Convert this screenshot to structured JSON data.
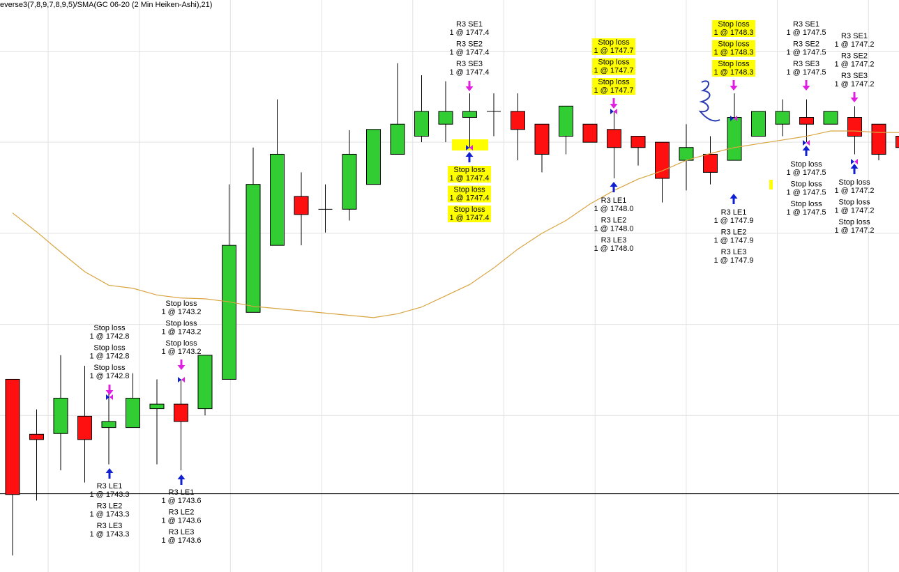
{
  "chart_data": {
    "type": "candlestick",
    "title": "everse3(7,8,9,7,8,9,5)/SMA(GC 06-20 (2 Min Heiken-Ashi),21)",
    "ylim": [
      1741.4,
      1749.0
    ],
    "gridlines": [
      1743.48,
      1744.69,
      1745.9,
      1747.11,
      1748.32
    ],
    "level": 1742.44,
    "up_color": "#32cd32",
    "down_color": "#ff1010",
    "open": [
      1743.96,
      1743.23,
      1743.24,
      1743.47,
      1743.32,
      1743.32,
      1743.57,
      1743.63,
      1743.57,
      1743.96,
      1744.85,
      1745.74,
      1746.39,
      1746.22,
      1746.22,
      1746.55,
      1746.95,
      1747.19,
      1747.35,
      1747.44,
      1747.52,
      1747.52,
      1747.35,
      1747.19,
      1747.35,
      1747.28,
      1747.19,
      1747.11,
      1746.87,
      1746.95,
      1746.87,
      1747.19,
      1747.35,
      1747.44,
      1747.35,
      1747.44,
      1747.35,
      1747.19
    ],
    "high": [
      1743.96,
      1743.56,
      1744.28,
      1744.14,
      1743.77,
      1744.04,
      1743.96,
      1743.96,
      1744.28,
      1746.55,
      1747.04,
      1747.68,
      1746.71,
      1746.55,
      1747.27,
      1747.28,
      1748.16,
      1748.0,
      1747.92,
      1747.76,
      1747.76,
      1747.76,
      1747.35,
      1747.59,
      1747.35,
      1747.52,
      1747.19,
      1747.11,
      1747.35,
      1747.19,
      1747.76,
      1747.52,
      1747.68,
      1747.68,
      1747.52,
      1747.59,
      1747.35,
      1747.19
    ],
    "low": [
      1741.62,
      1742.35,
      1742.75,
      1742.59,
      1742.83,
      1743.32,
      1742.83,
      1742.75,
      1743.48,
      1743.96,
      1744.85,
      1745.74,
      1745.74,
      1745.91,
      1746.07,
      1746.55,
      1746.95,
      1747.11,
      1747.11,
      1747.04,
      1747.19,
      1746.87,
      1746.71,
      1746.95,
      1747.11,
      1746.63,
      1746.8,
      1746.31,
      1746.47,
      1746.55,
      1746.87,
      1747.19,
      1747.19,
      1747.11,
      1747.35,
      1746.95,
      1746.87,
      1747.04
    ],
    "close": [
      1742.43,
      1743.16,
      1743.71,
      1743.16,
      1743.4,
      1743.71,
      1743.63,
      1743.4,
      1744.28,
      1745.74,
      1746.55,
      1746.95,
      1746.15,
      1746.22,
      1746.95,
      1747.28,
      1747.35,
      1747.52,
      1747.52,
      1747.52,
      1747.52,
      1747.28,
      1746.95,
      1747.59,
      1747.11,
      1747.04,
      1747.04,
      1746.63,
      1747.04,
      1746.71,
      1747.44,
      1747.52,
      1747.52,
      1747.35,
      1747.52,
      1747.19,
      1746.95,
      1747.04
    ],
    "sma": {
      "color": "#d9a441",
      "values": [
        1746.17,
        1745.92,
        1745.65,
        1745.39,
        1745.21,
        1745.17,
        1745.08,
        1745.04,
        1745.03,
        1744.99,
        1744.93,
        1744.9,
        1744.87,
        1744.84,
        1744.81,
        1744.78,
        1744.83,
        1744.92,
        1745.07,
        1745.22,
        1745.44,
        1745.69,
        1745.9,
        1746.07,
        1746.29,
        1746.47,
        1746.62,
        1746.73,
        1746.87,
        1746.96,
        1747.04,
        1747.09,
        1747.14,
        1747.19,
        1747.26,
        1747.26,
        1747.24,
        1747.24
      ]
    },
    "annotations": [
      {
        "lines": [
          "Stop loss",
          "1 @ 1742.8",
          "Stop loss",
          "1 @ 1742.8",
          "Stop loss",
          "1 @ 1742.8"
        ]
      },
      {
        "lines": [
          "R3 LE1",
          "1 @ 1743.3",
          "R3 LE2",
          "1 @ 1743.3",
          "R3 LE3",
          "1 @ 1743.3"
        ]
      },
      {
        "lines": [
          "Stop loss",
          "1 @ 1743.2",
          "Stop loss",
          "1 @ 1743.2",
          "Stop loss",
          "1 @ 1743.2"
        ]
      },
      {
        "lines": [
          "R3 LE1",
          "1 @ 1743.6",
          "R3 LE2",
          "1 @ 1743.6",
          "R3 LE3",
          "1 @ 1743.6"
        ]
      },
      {
        "lines": [
          "R3 SE1",
          "1 @ 1747.4",
          "R3 SE2",
          "1 @ 1747.4",
          "R3 SE3",
          "1 @ 1747.4"
        ]
      },
      {
        "lines": [
          "Stop loss",
          "1 @ 1747.4",
          "Stop loss",
          "1 @ 1747.4",
          "Stop loss",
          "1 @ 1747.4"
        ]
      },
      {
        "lines": [
          "Stop loss",
          "1 @ 1747.7",
          "Stop loss",
          "1 @ 1747.7",
          "Stop loss",
          "1 @ 1747.7"
        ]
      },
      {
        "lines": [
          "R3 LE1",
          "1 @ 1748.0",
          "R3 LE2",
          "1 @ 1748.0",
          "R3 LE3",
          "1 @ 1748.0"
        ]
      },
      {
        "lines": [
          "Stop loss",
          "1 @ 1748.3",
          "Stop loss",
          "1 @ 1748.3",
          "Stop loss",
          "1 @ 1748.3"
        ]
      },
      {
        "lines": [
          "R3 LE1",
          "1 @ 1747.9",
          "R3 LE2",
          "1 @ 1747.9",
          "R3 LE3",
          "1 @ 1747.9"
        ]
      },
      {
        "lines": [
          "R3 SE1",
          "1 @ 1747.5",
          "R3 SE2",
          "1 @ 1747.5",
          "R3 SE3",
          "1 @ 1747.5"
        ]
      },
      {
        "lines": [
          "Stop loss",
          "1 @ 1747.5",
          "Stop loss",
          "1 @ 1747.5",
          "Stop loss",
          "1 @ 1747.5"
        ]
      },
      {
        "lines": [
          "R3 SE1",
          "1 @ 1747.2",
          "R3 SE2",
          "1 @ 1747.2",
          "R3 SE3",
          "1 @ 1747.2"
        ]
      },
      {
        "lines": [
          "Stop loss",
          "1 @ 1747.2",
          "Stop loss",
          "1 @ 1747.2",
          "Stop loss",
          "1 @ 1747.2"
        ]
      }
    ]
  }
}
